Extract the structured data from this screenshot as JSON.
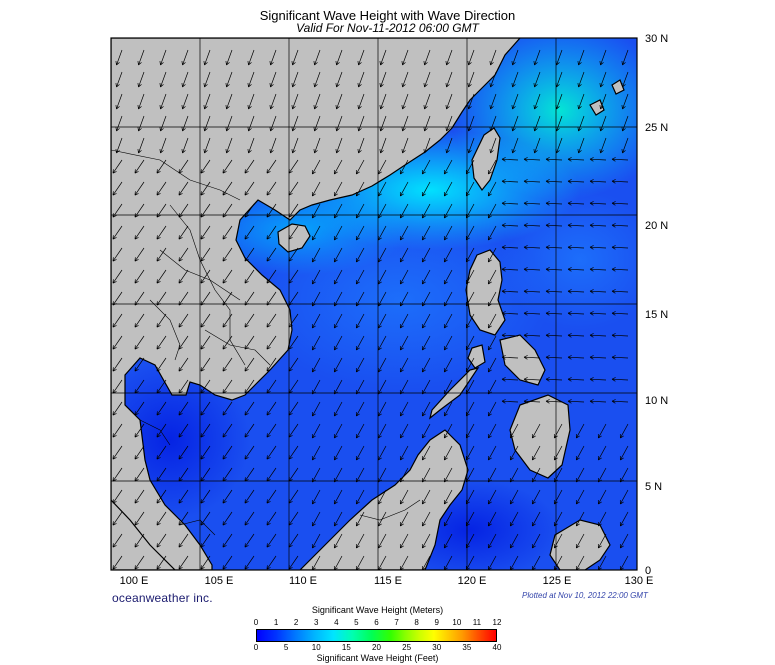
{
  "header": {
    "title": "Significant Wave Height with Wave Direction",
    "subtitle": "Valid For Nov-11-2012 06:00 GMT"
  },
  "map": {
    "lon_labels": [
      "100 E",
      "105 E",
      "110 E",
      "115 E",
      "120 E",
      "125 E",
      "130 E"
    ],
    "lat_labels": [
      "30 N",
      "25 N",
      "20 N",
      "15 N",
      "10 N",
      "5 N",
      "0"
    ],
    "lon_range": [
      99,
      130
    ],
    "lat_range": [
      0,
      30
    ],
    "land_color": "#c0c0c0",
    "sea_base_color": "#1a4ff0",
    "arrow_color": "#000000"
  },
  "footer": {
    "brand": "oceanweather inc.",
    "plotted": "Plotted at Nov 10, 2012 22:00 GMT"
  },
  "legend": {
    "title_top": "Significant Wave Height (Meters)",
    "title_bottom": "Significant Wave Height (Feet)",
    "meters_ticks": [
      "0",
      "1",
      "2",
      "3",
      "4",
      "5",
      "6",
      "7",
      "8",
      "9",
      "10",
      "11",
      "12"
    ],
    "feet_ticks": [
      "0",
      "5",
      "10",
      "15",
      "20",
      "25",
      "30",
      "35",
      "40"
    ]
  }
}
